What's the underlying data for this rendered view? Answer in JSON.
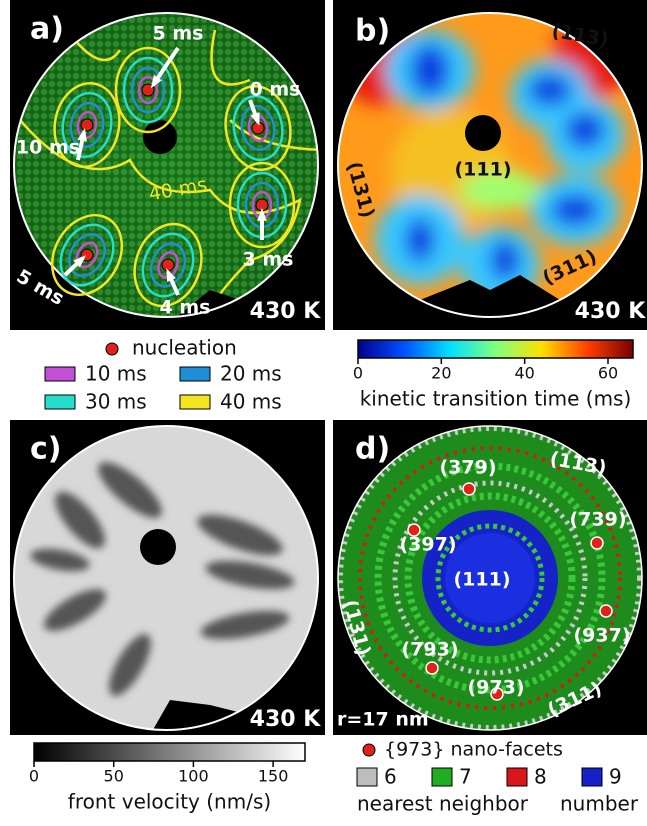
{
  "panels": [
    {
      "label": "a)",
      "temperature": "430 K",
      "annotations": [
        "5 ms",
        "0 ms",
        "10 ms",
        "40 ms",
        "3 ms",
        "5 ms",
        "4 ms"
      ]
    },
    {
      "label": "b)",
      "temperature": "430 K",
      "annotations": [
        "(113)",
        "(111)",
        "(131)",
        "(311)"
      ]
    },
    {
      "label": "c)",
      "temperature": "430 K",
      "annotations": []
    },
    {
      "label": "d)",
      "scale": "r=17 nm",
      "annotations": [
        "(379)",
        "(113)",
        "(397)",
        "(739)",
        "(111)",
        "(131)",
        "(937)",
        "(793)",
        "(973)",
        "(311)"
      ]
    }
  ],
  "legend_a": {
    "marker": "nucleation",
    "marker_color": "#e0221b",
    "items": [
      {
        "name": "10 ms",
        "color": "#c34fd6"
      },
      {
        "name": "20 ms",
        "color": "#1e8fd6"
      },
      {
        "name": "30 ms",
        "color": "#26dccb"
      },
      {
        "name": "40 ms",
        "color": "#f3e621"
      }
    ]
  },
  "colorbar_b": {
    "label": "kinetic transition time (ms)",
    "range": [
      0,
      66
    ],
    "ticks": [
      0,
      20,
      40,
      60
    ],
    "colors": [
      "#00008f",
      "#0050ff",
      "#00e0ff",
      "#80ff80",
      "#ffe000",
      "#ff4000",
      "#7a0000"
    ]
  },
  "colorbar_c": {
    "label": "front velocity (nm/s)",
    "range": [
      0,
      170
    ],
    "ticks": [
      0,
      50,
      100,
      150
    ],
    "colors": [
      "#000000",
      "#ffffff"
    ]
  },
  "legend_d": {
    "marker": "{973} nano-facets",
    "marker_color": "#e0221b",
    "items": [
      {
        "name": "6",
        "color": "#bdbdbd"
      },
      {
        "name": "7",
        "color": "#1fae1f"
      },
      {
        "name": "8",
        "color": "#d9161a"
      },
      {
        "name": "9",
        "color": "#1422c8"
      }
    ],
    "caption": [
      "nearest neighbor",
      "number"
    ]
  }
}
